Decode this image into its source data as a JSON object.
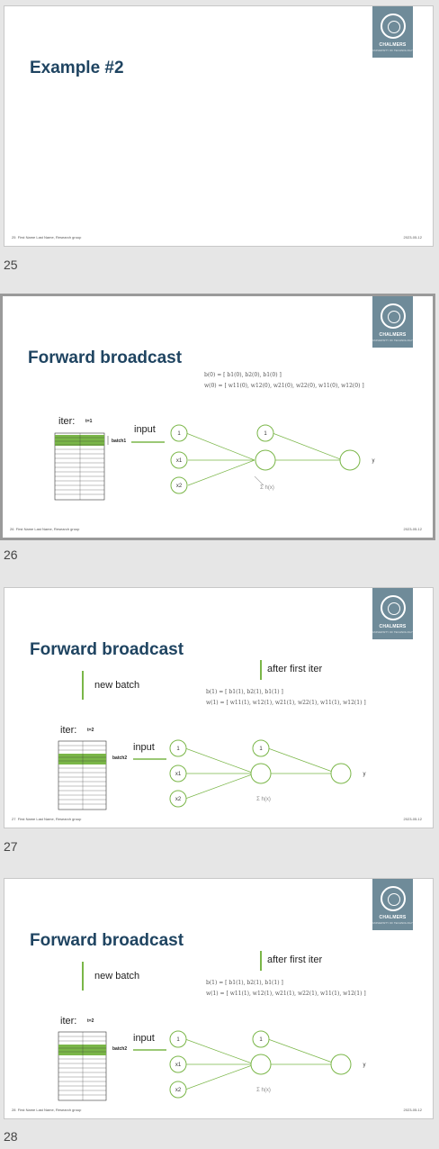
{
  "slides": [
    {
      "number": "25",
      "title": "Example #2",
      "footer_page": "25",
      "footer_name": "First Name Last Name, Research group",
      "footer_date": "2023-05-12"
    },
    {
      "number": "26",
      "title": "Forward broadcast",
      "footer_page": "26",
      "footer_name": "First Name Last Name, Research group",
      "footer_date": "2023-05-12",
      "iter_label": "iter:",
      "iter_value": "t=1",
      "batch_label": "batch1",
      "input_label": "input",
      "formula_b": "b(0) = [ b1(0), b2(0), b1(0) ]",
      "formula_w": "w(0) = [ w11(0), w12(0), w21(0), w22(0), w11(0), w12(0) ]",
      "nodes": [
        "1",
        "x1",
        "x2",
        "1"
      ],
      "output_label": "y",
      "sum_label": "Σ h(x)"
    },
    {
      "number": "27",
      "title": "Forward broadcast",
      "footer_page": "27",
      "footer_name": "First Name Last Name, Research group",
      "footer_date": "2023-05-12",
      "iter_label": "iter:",
      "iter_value": "t=2",
      "batch_label": "batch2",
      "input_label": "input",
      "new_batch": "new batch",
      "after_first_iter": "after first iter",
      "formula_b": "b(1) = [ b1(1), b2(1), b1(1) ]",
      "formula_w": "w(1) = [ w11(1), w12(1), w21(1), w22(1), w11(1), w12(1) ]",
      "nodes": [
        "1",
        "x1",
        "x2",
        "1"
      ],
      "output_label": "y",
      "sum_label": "Σ h(x)"
    },
    {
      "number": "28",
      "title": "Forward broadcast",
      "footer_page": "28",
      "footer_name": "First Name Last Name, Research group",
      "footer_date": "2023-05-12",
      "iter_label": "iter:",
      "iter_value": "t=2",
      "batch_label": "batch2",
      "input_label": "input",
      "new_batch": "new batch",
      "after_first_iter": "after first iter",
      "formula_b": "b(1) = [ b1(1), b2(1), b1(1) ]",
      "formula_w": "w(1) = [ w11(1), w12(1), w21(1), w22(1), w11(1), w12(1) ]",
      "nodes": [
        "1",
        "x1",
        "x2",
        "1"
      ],
      "output_label": "y",
      "sum_label": "Σ h(x)"
    }
  ],
  "logo": {
    "text": "CHALMERS",
    "sub": "UNIVERSITY OF TECHNOLOGY",
    "color": "#6f8b99"
  },
  "colors": {
    "title": "#1f4461",
    "accent": "#7ab648",
    "background": "#e6e6e6"
  }
}
